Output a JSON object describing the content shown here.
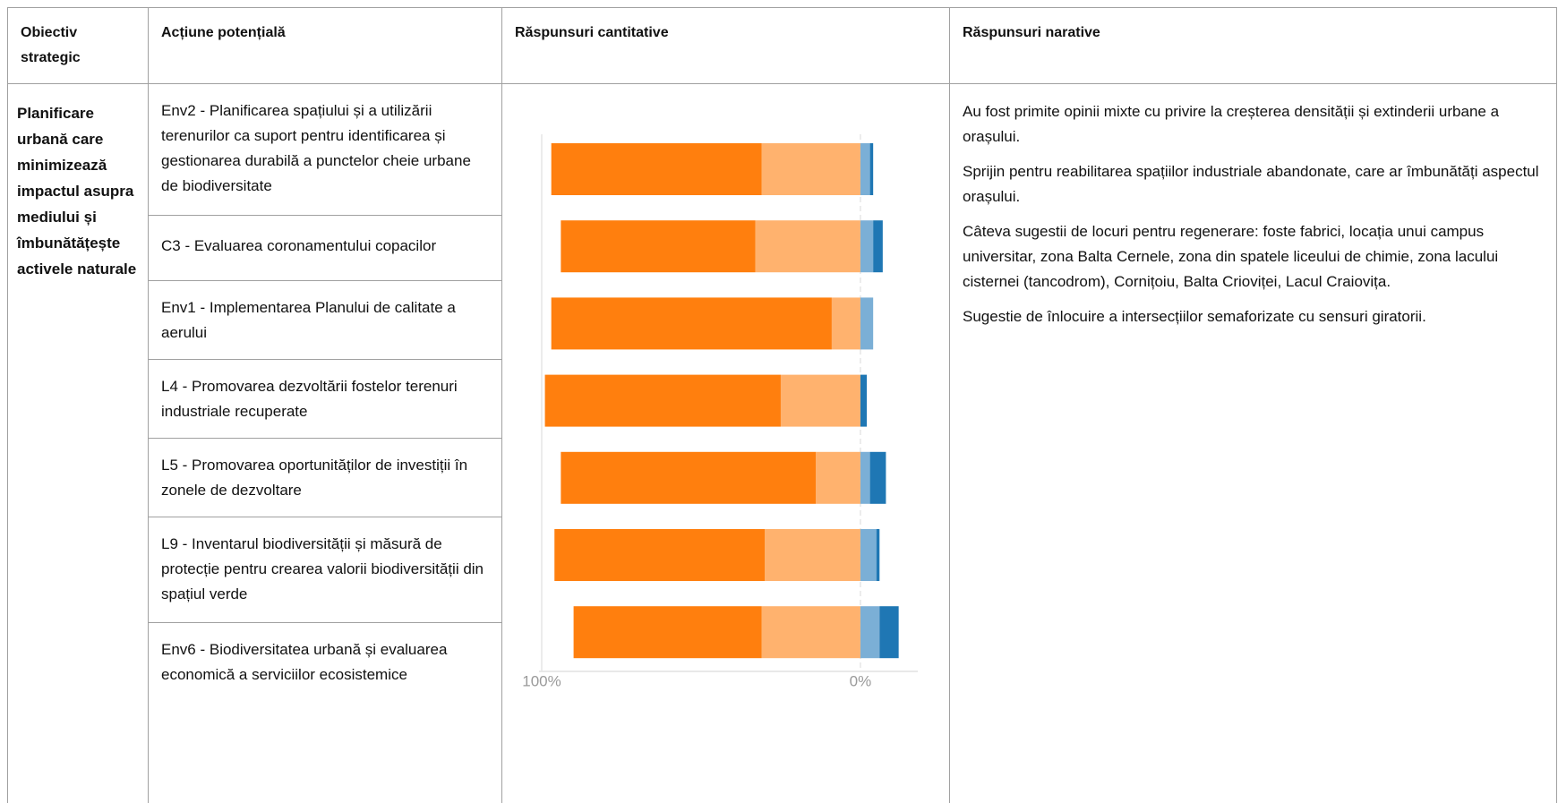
{
  "table": {
    "headers": [
      "Obiectiv strategic",
      "Acțiune potențială",
      "Răspunsuri cantitative",
      "Răspunsuri narative"
    ],
    "objective": "Planificare urbană care minimizează impactul asupra mediului și îmbunătățește activele naturale",
    "actions": [
      "Env2 - Planificarea spațiului și a utilizării terenurilor ca suport pentru identificarea și gestionarea durabilă a punctelor cheie urbane de biodiversitate",
      "C3 - Evaluarea coronamentului copacilor",
      "Env1 - Implementarea Planului de calitate a aerului",
      "L4 - Promovarea dezvoltării fostelor terenuri industriale recuperate",
      "L5 - Promovarea oportunităților de investiții în zonele de dezvoltare",
      "L9 - Inventarul biodiversității și măsură de protecție pentru crearea valorii biodiversității din spațiul verde",
      "Env6 - Biodiversitatea urbană și evaluarea economică a serviciilor ecosistemice"
    ],
    "narrative": [
      "Au fost primite opinii mixte cu privire la creșterea densității și extinderii urbane a orașului.",
      "Sprijin pentru reabilitarea spațiilor industriale abandonate, care ar îmbunătăți aspectul orașului.",
      "Câteva sugestii de locuri pentru regenerare: foste fabrici, locația unui campus universitar, zona Balta Cernele, zona din spatele liceului de chimie, zona lacului cisternei (tancodrom), Cornițoiu, Balta Crioviței, Lacul Craiovița.",
      "Sugestie de înlocuire a intersecțiilor semaforizate cu sensuri giratorii."
    ]
  },
  "chart_data": {
    "type": "bar",
    "orientation": "horizontal",
    "stacked": true,
    "categories": [
      null,
      null,
      null,
      null,
      null,
      null,
      null
    ],
    "series": [
      {
        "color": "#ffb26e",
        "values": [
          -31,
          -33,
          -9,
          -25,
          -14,
          -30,
          -31
        ]
      },
      {
        "color": "#ff7f0e",
        "values": [
          -66,
          -61,
          -88,
          -74,
          -80,
          -66,
          -59
        ]
      },
      {
        "color": "#7bafd6",
        "values": [
          3,
          4,
          4,
          0,
          3,
          5,
          6
        ]
      },
      {
        "color": "#1f77b4",
        "values": [
          1,
          3,
          0,
          2,
          5,
          1,
          6
        ]
      }
    ],
    "xlim": [
      -100,
      18
    ],
    "xticks": [
      {
        "value": -100,
        "label": "100%"
      },
      {
        "value": 0,
        "label": "0%"
      }
    ]
  }
}
